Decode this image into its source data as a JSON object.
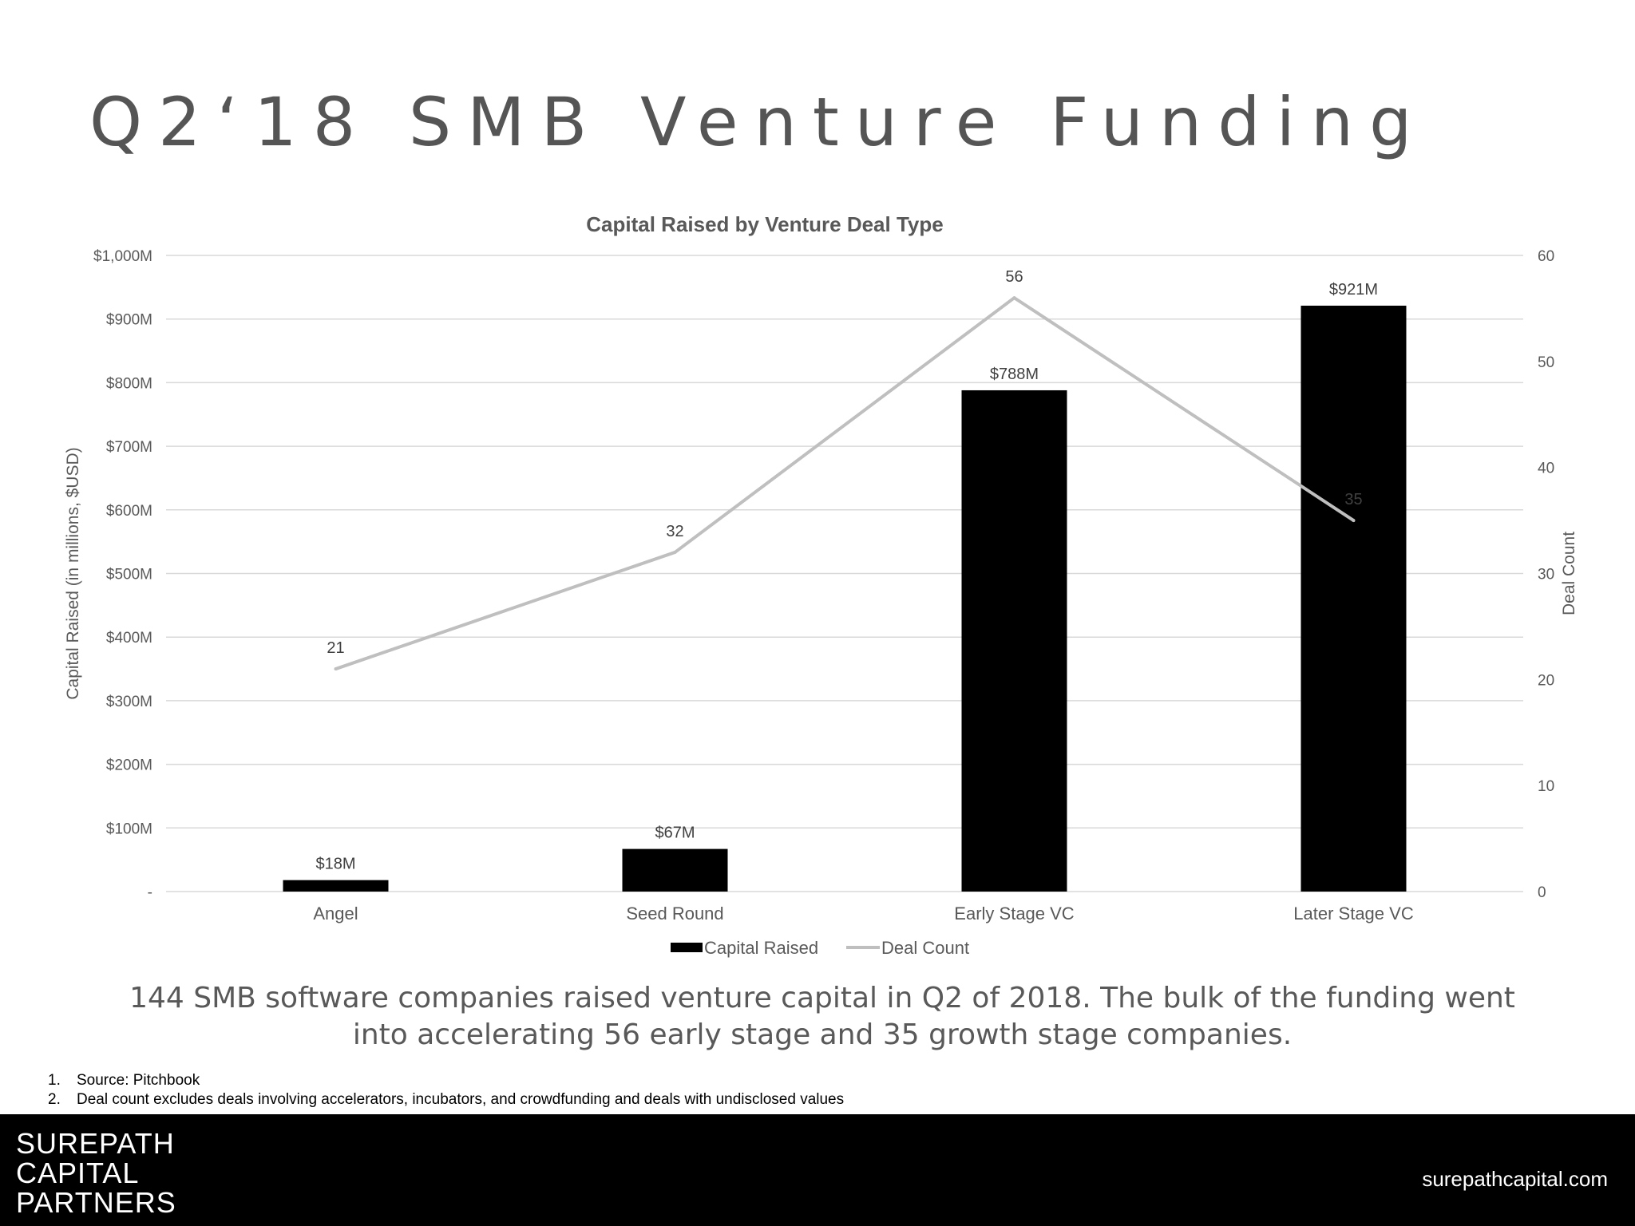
{
  "slide": {
    "title": "Q2‘18 SMB Venture Funding",
    "summary": "144 SMB software companies raised venture capital in Q2 of 2018. The bulk of the funding went into accelerating 56 early stage and 35 growth stage companies.",
    "notes": [
      {
        "num": "1.",
        "text": "Source: Pitchbook"
      },
      {
        "num": "2.",
        "text": "Deal count excludes deals involving accelerators, incubators, and crowdfunding and deals with undisclosed values"
      }
    ]
  },
  "footer": {
    "logo_lines": [
      "SUREPATH",
      "CAPITAL",
      "PARTNERS"
    ],
    "website": "surepathcapital.com"
  },
  "colors": {
    "bars": "#000000",
    "line": "#bfbfbf",
    "grid": "#d9d9d9",
    "axis_text": "#595959",
    "footer_bg": "#000000"
  },
  "chart_data": {
    "type": "bar",
    "title": "Capital Raised by Venture Deal Type",
    "categories": [
      "Angel",
      "Seed Round",
      "Early Stage VC",
      "Later Stage VC"
    ],
    "series": [
      {
        "name": "Capital Raised",
        "type": "bar",
        "axis": "left",
        "values": [
          18,
          67,
          788,
          921
        ],
        "labels": [
          "$18M",
          "$67M",
          "$788M",
          "$921M"
        ]
      },
      {
        "name": "Deal Count",
        "type": "line",
        "axis": "right",
        "values": [
          21,
          32,
          56,
          35
        ],
        "labels": [
          "21",
          "32",
          "56",
          "35"
        ]
      }
    ],
    "ylabel": "Capital Raised (in millions, $USD)",
    "ylim": [
      0,
      1000
    ],
    "yticks": [
      0,
      100,
      200,
      300,
      400,
      500,
      600,
      700,
      800,
      900,
      1000
    ],
    "ytick_labels": [
      "-",
      "$100M",
      "$200M",
      "$300M",
      "$400M",
      "$500M",
      "$600M",
      "$700M",
      "$800M",
      "$900M",
      "$1,000M"
    ],
    "y2label": "Deal Count",
    "y2lim": [
      0,
      60
    ],
    "y2ticks": [
      0,
      10,
      20,
      30,
      40,
      50,
      60
    ],
    "y2tick_labels": [
      "0",
      "10",
      "20",
      "30",
      "40",
      "50",
      "60"
    ],
    "grid": true,
    "legend_position": "bottom"
  }
}
